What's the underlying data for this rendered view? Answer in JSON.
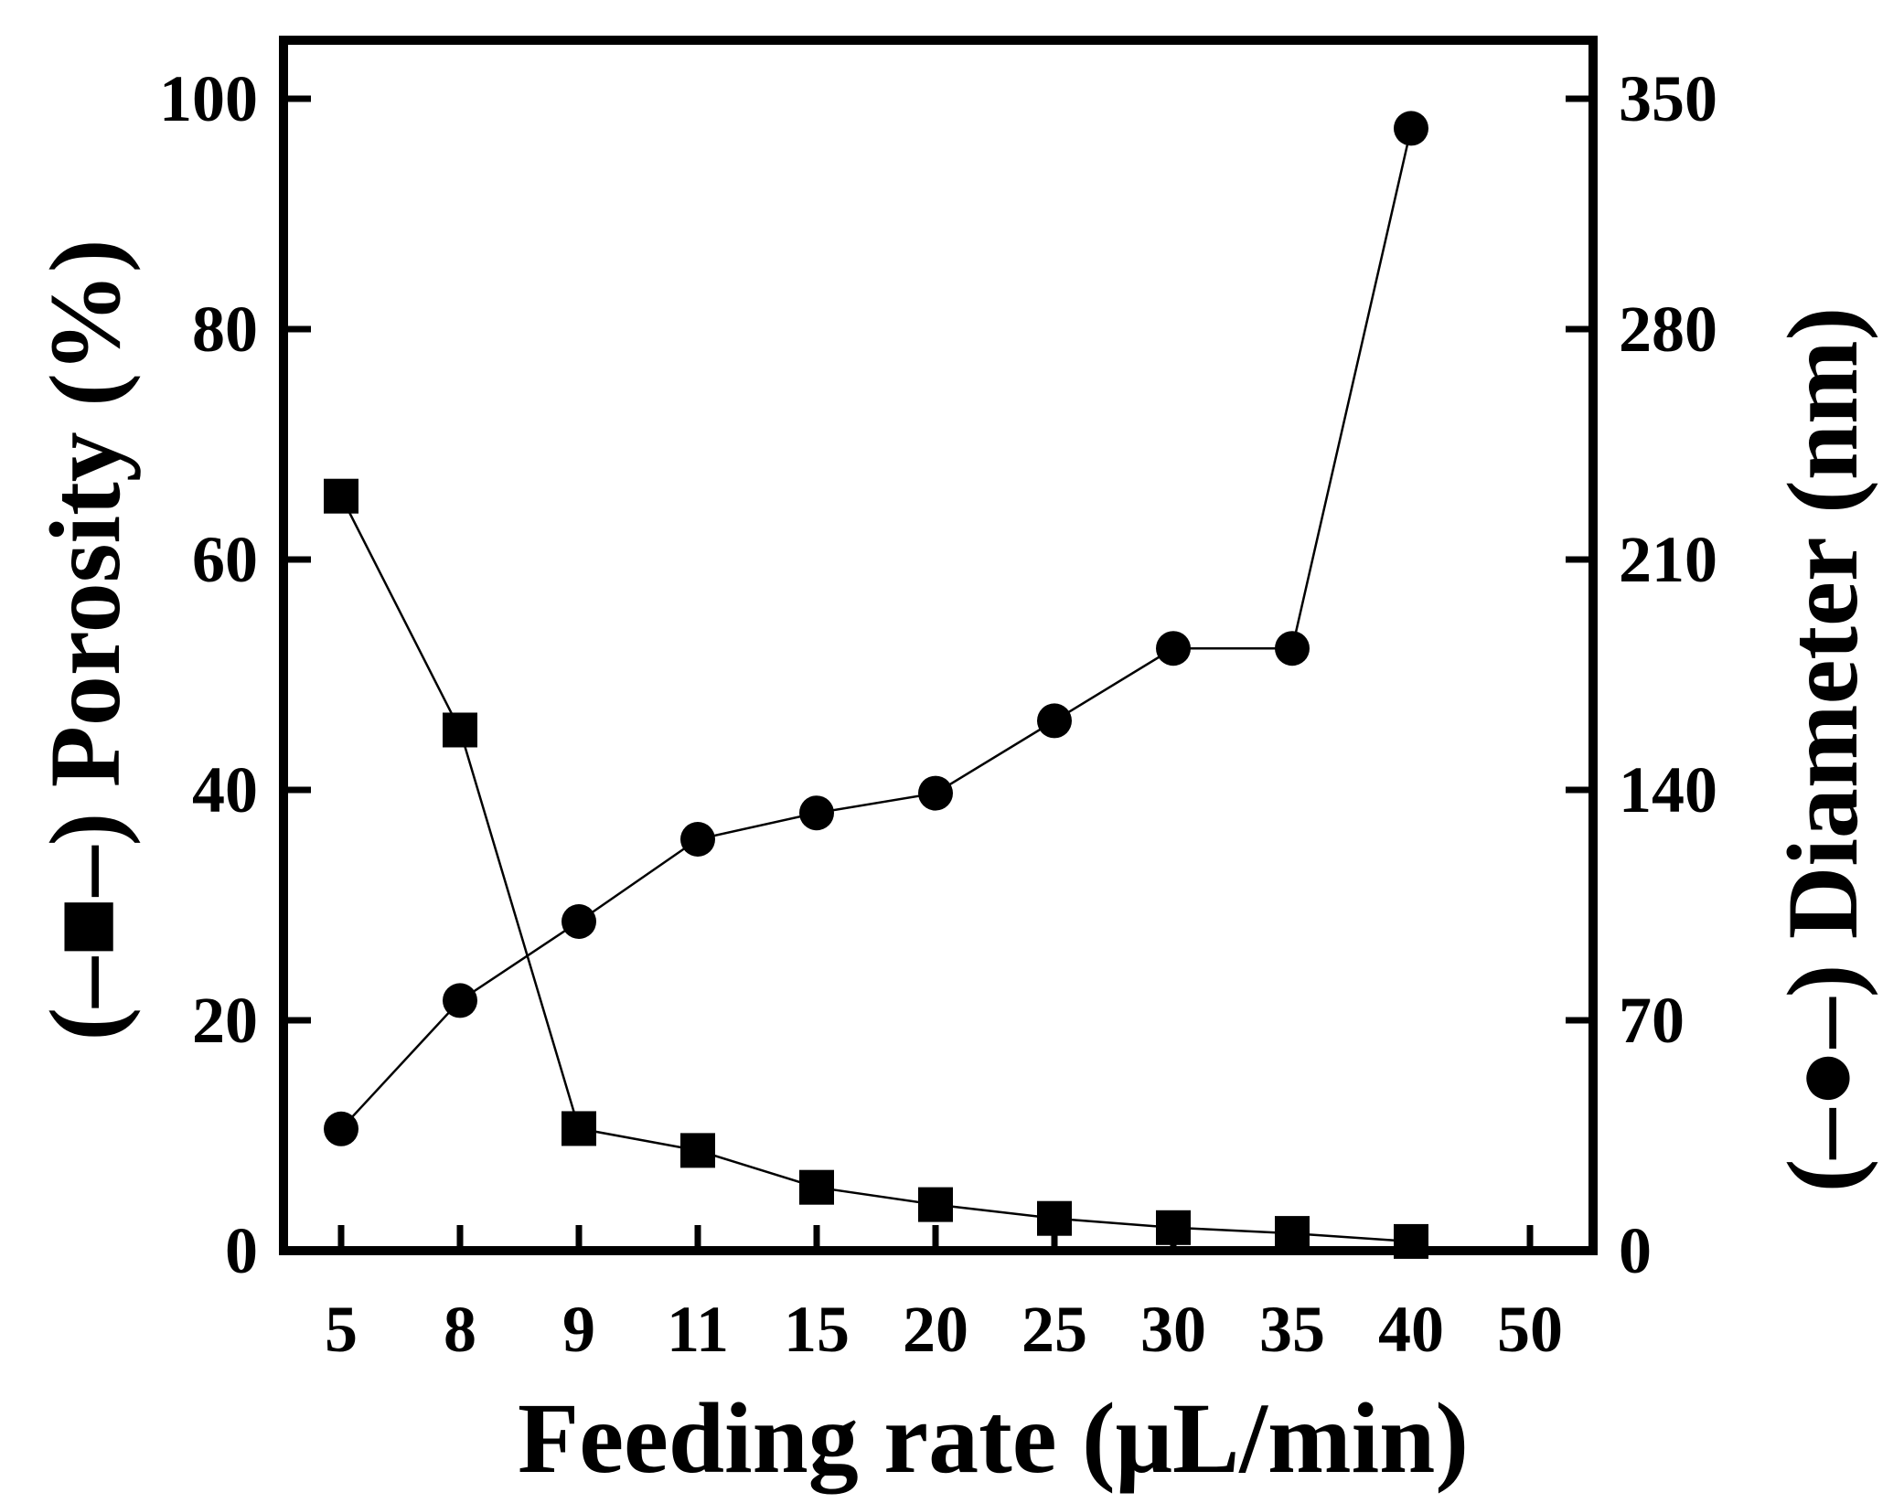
{
  "chart_data": {
    "type": "line",
    "xlabel": "Feeding rate (μL/min)",
    "ylabel_left": "Porosity (%)",
    "ylabel_right": "Diameter (nm)",
    "categories": [
      "5",
      "8",
      "9",
      "11",
      "15",
      "20",
      "25",
      "30",
      "35",
      "40",
      "50"
    ],
    "yleft_ticks": [
      "0",
      "20",
      "40",
      "60",
      "80",
      "100"
    ],
    "yright_ticks": [
      "0",
      "70",
      "140",
      "210",
      "280",
      "350"
    ],
    "yleft_lim": [
      0,
      100
    ],
    "yright_lim": [
      0,
      350
    ],
    "grid": false,
    "series": [
      {
        "name": "Porosity",
        "axis": "left",
        "marker": "square",
        "values": [
          65.5,
          45.2,
          10.6,
          8.7,
          5.5,
          4.0,
          2.8,
          2.0,
          1.5,
          0.8,
          null
        ]
      },
      {
        "name": "Diameter",
        "axis": "right",
        "marker": "circle",
        "values": [
          37,
          76,
          100,
          125,
          133,
          139,
          161,
          183,
          183,
          341,
          null
        ]
      }
    ]
  }
}
